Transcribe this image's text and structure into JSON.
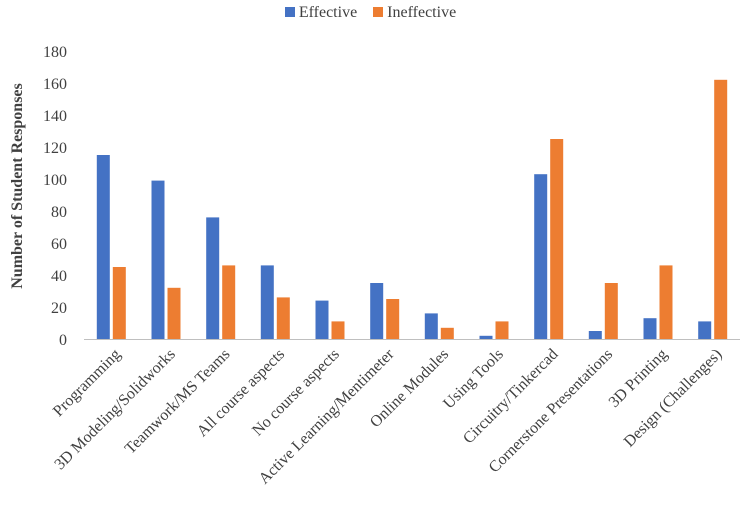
{
  "chart_data": {
    "type": "bar",
    "title": "",
    "xlabel": "",
    "ylabel": "Number of Student Responses",
    "ylim": [
      0,
      180
    ],
    "yticks": [
      0,
      20,
      40,
      60,
      80,
      100,
      120,
      140,
      160,
      180
    ],
    "grid": false,
    "legend_position": "top-center",
    "categories": [
      "Programming",
      "3D Modeling/Solidworks",
      "Teamwork/MS Teams",
      "All course aspects",
      "No course aspects",
      "Active Learning/Mentimeter",
      "Online Modules",
      "Using Tools",
      "Circuitry/Tinkercad",
      "Cornerstone Presentations",
      "3D Printing",
      "Design (Challenges)"
    ],
    "series": [
      {
        "name": "Effective",
        "color": "#4472C4",
        "values": [
          115,
          99,
          76,
          46,
          24,
          35,
          16,
          2,
          103,
          5,
          13,
          11
        ]
      },
      {
        "name": "Ineffective",
        "color": "#ED7D31",
        "values": [
          45,
          32,
          46,
          26,
          11,
          25,
          7,
          11,
          125,
          35,
          46,
          162
        ]
      }
    ]
  }
}
